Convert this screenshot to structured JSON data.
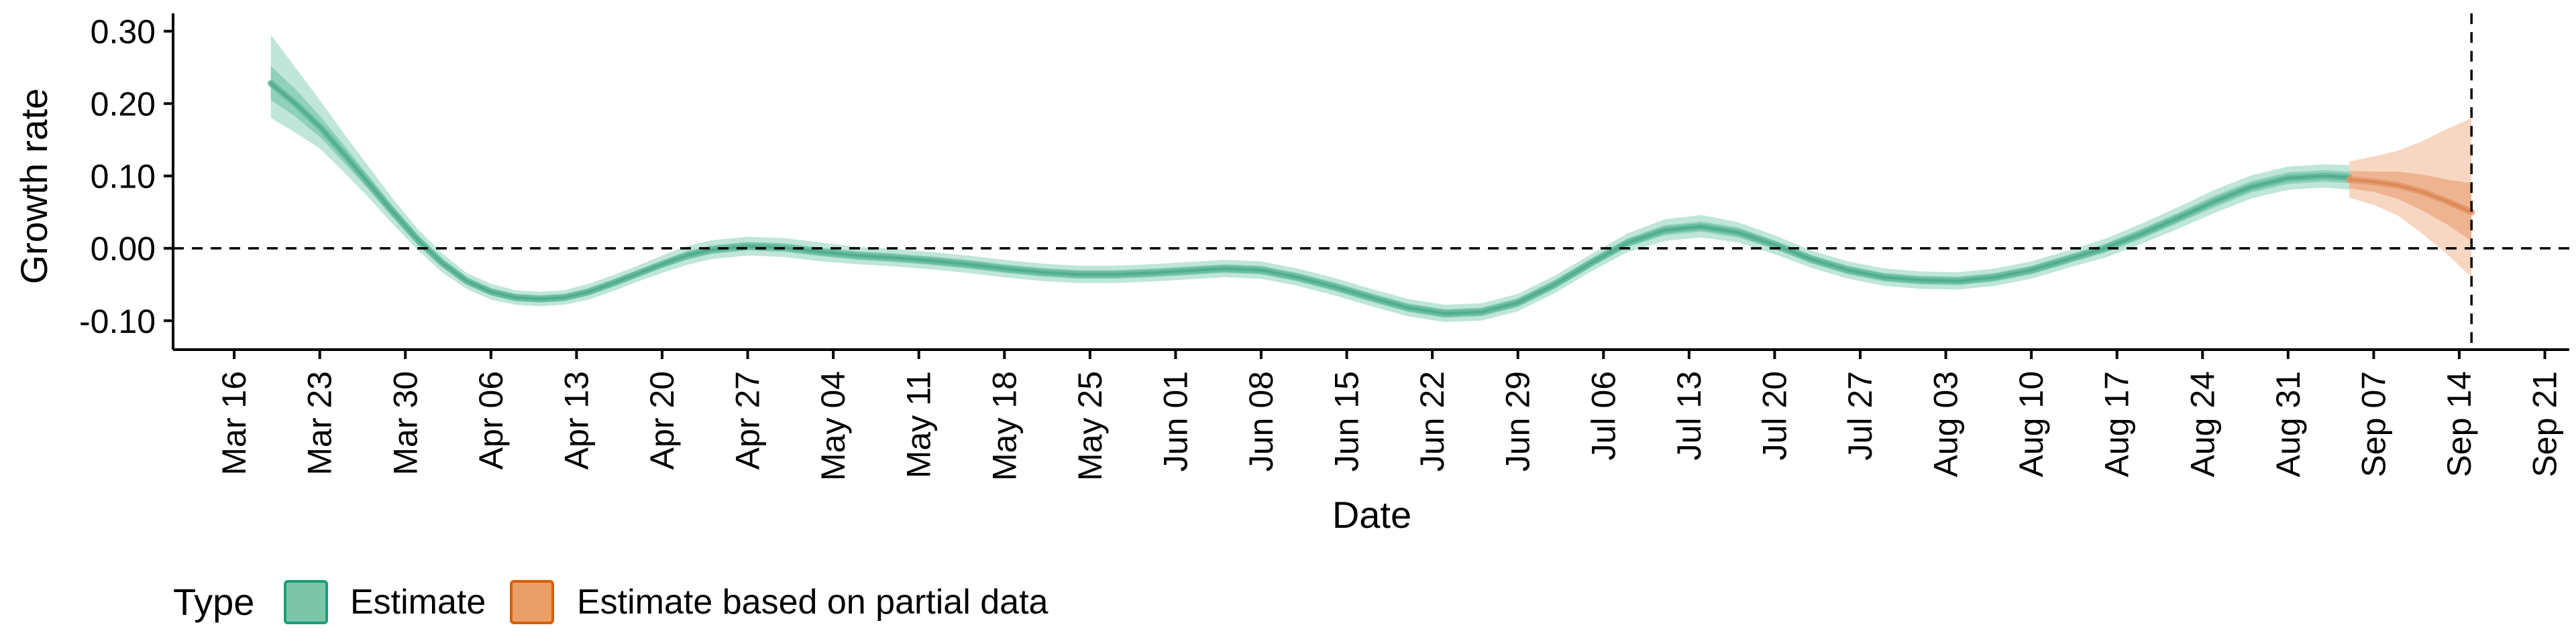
{
  "chart_data": {
    "type": "area",
    "title": "",
    "xlabel": "Date",
    "ylabel": "Growth rate",
    "ylim": [
      -0.14,
      0.32
    ],
    "y_ticks": [
      -0.1,
      0.0,
      0.1,
      0.2,
      0.3
    ],
    "y_tick_labels": [
      "-0.10",
      "0.00",
      "0.10",
      "0.20",
      "0.30"
    ],
    "x_range": [
      "2020-03-11",
      "2020-09-23"
    ],
    "x_ticks": [
      "2020-03-16",
      "2020-03-23",
      "2020-03-30",
      "2020-04-06",
      "2020-04-13",
      "2020-04-20",
      "2020-04-27",
      "2020-05-04",
      "2020-05-11",
      "2020-05-18",
      "2020-05-25",
      "2020-06-01",
      "2020-06-08",
      "2020-06-15",
      "2020-06-22",
      "2020-06-29",
      "2020-07-06",
      "2020-07-13",
      "2020-07-20",
      "2020-07-27",
      "2020-08-03",
      "2020-08-10",
      "2020-08-17",
      "2020-08-24",
      "2020-08-31",
      "2020-09-07",
      "2020-09-14",
      "2020-09-21"
    ],
    "x_tick_labels": [
      "Mar 16",
      "Mar 23",
      "Mar 30",
      "Apr 06",
      "Apr 13",
      "Apr 20",
      "Apr 27",
      "May 04",
      "May 11",
      "May 18",
      "May 25",
      "Jun 01",
      "Jun 08",
      "Jun 15",
      "Jun 22",
      "Jun 29",
      "Jul 06",
      "Jul 13",
      "Jul 20",
      "Jul 27",
      "Aug 03",
      "Aug 10",
      "Aug 17",
      "Aug 24",
      "Aug 31",
      "Sep 07",
      "Sep 14",
      "Sep 21"
    ],
    "reference_lines": {
      "horizontal_y": 0.0,
      "vertical_date": "2020-09-15",
      "style": "dashed"
    },
    "grid": false,
    "legend_position": "bottom-left",
    "legend_title": "Type",
    "series": [
      {
        "name": "Estimate",
        "color": "#1b9e77",
        "fill_light": "#bfe6d8",
        "fill_mid": "#8fd1b9",
        "fill_dark": "#63bb9b",
        "line_color": "#52ad8c",
        "points": [
          {
            "x": "2020-03-19",
            "y": 0.228,
            "lo90": 0.18,
            "hi90": 0.295,
            "lo50": 0.205,
            "hi50": 0.252
          },
          {
            "x": "2020-03-21",
            "y": 0.2,
            "lo90": 0.16,
            "hi90": 0.25,
            "lo50": 0.182,
            "hi50": 0.22
          },
          {
            "x": "2020-03-23",
            "y": 0.168,
            "lo90": 0.138,
            "hi90": 0.205,
            "lo50": 0.154,
            "hi50": 0.183
          },
          {
            "x": "2020-03-25",
            "y": 0.13,
            "lo90": 0.105,
            "hi90": 0.158,
            "lo50": 0.118,
            "hi50": 0.142
          },
          {
            "x": "2020-03-27",
            "y": 0.09,
            "lo90": 0.07,
            "hi90": 0.113,
            "lo50": 0.081,
            "hi50": 0.1
          },
          {
            "x": "2020-03-29",
            "y": 0.05,
            "lo90": 0.033,
            "hi90": 0.068,
            "lo50": 0.042,
            "hi50": 0.058
          },
          {
            "x": "2020-03-31",
            "y": 0.012,
            "lo90": -0.002,
            "hi90": 0.027,
            "lo50": 0.005,
            "hi50": 0.019
          },
          {
            "x": "2020-04-02",
            "y": -0.02,
            "lo90": -0.033,
            "hi90": -0.007,
            "lo50": -0.026,
            "hi50": -0.014
          },
          {
            "x": "2020-04-04",
            "y": -0.045,
            "lo90": -0.056,
            "hi90": -0.034,
            "lo50": -0.05,
            "hi50": -0.04
          },
          {
            "x": "2020-04-06",
            "y": -0.06,
            "lo90": -0.071,
            "hi90": -0.049,
            "lo50": -0.065,
            "hi50": -0.055
          },
          {
            "x": "2020-04-08",
            "y": -0.068,
            "lo90": -0.078,
            "hi90": -0.058,
            "lo50": -0.073,
            "hi50": -0.063
          },
          {
            "x": "2020-04-10",
            "y": -0.07,
            "lo90": -0.08,
            "hi90": -0.06,
            "lo50": -0.075,
            "hi50": -0.065
          },
          {
            "x": "2020-04-12",
            "y": -0.068,
            "lo90": -0.078,
            "hi90": -0.058,
            "lo50": -0.073,
            "hi50": -0.063
          },
          {
            "x": "2020-04-14",
            "y": -0.06,
            "lo90": -0.071,
            "hi90": -0.049,
            "lo50": -0.065,
            "hi50": -0.055
          },
          {
            "x": "2020-04-16",
            "y": -0.048,
            "lo90": -0.059,
            "hi90": -0.037,
            "lo50": -0.053,
            "hi50": -0.043
          },
          {
            "x": "2020-04-18",
            "y": -0.035,
            "lo90": -0.046,
            "hi90": -0.024,
            "lo50": -0.04,
            "hi50": -0.03
          },
          {
            "x": "2020-04-20",
            "y": -0.022,
            "lo90": -0.034,
            "hi90": -0.01,
            "lo50": -0.027,
            "hi50": -0.017
          },
          {
            "x": "2020-04-22",
            "y": -0.01,
            "lo90": -0.023,
            "hi90": 0.003,
            "lo50": -0.016,
            "hi50": -0.004
          },
          {
            "x": "2020-04-24",
            "y": -0.002,
            "lo90": -0.015,
            "hi90": 0.011,
            "lo50": -0.008,
            "hi50": 0.004
          },
          {
            "x": "2020-04-27",
            "y": 0.003,
            "lo90": -0.01,
            "hi90": 0.016,
            "lo50": -0.003,
            "hi50": 0.009
          },
          {
            "x": "2020-04-30",
            "y": 0.001,
            "lo90": -0.012,
            "hi90": 0.014,
            "lo50": -0.005,
            "hi50": 0.007
          },
          {
            "x": "2020-05-03",
            "y": -0.005,
            "lo90": -0.018,
            "hi90": 0.008,
            "lo50": -0.011,
            "hi50": 0.001
          },
          {
            "x": "2020-05-06",
            "y": -0.01,
            "lo90": -0.022,
            "hi90": 0.002,
            "lo50": -0.016,
            "hi50": -0.004
          },
          {
            "x": "2020-05-09",
            "y": -0.013,
            "lo90": -0.025,
            "hi90": -0.001,
            "lo50": -0.019,
            "hi50": -0.007
          },
          {
            "x": "2020-05-12",
            "y": -0.017,
            "lo90": -0.029,
            "hi90": -0.005,
            "lo50": -0.023,
            "hi50": -0.011
          },
          {
            "x": "2020-05-15",
            "y": -0.022,
            "lo90": -0.034,
            "hi90": -0.01,
            "lo50": -0.028,
            "hi50": -0.016
          },
          {
            "x": "2020-05-18",
            "y": -0.028,
            "lo90": -0.04,
            "hi90": -0.016,
            "lo50": -0.034,
            "hi50": -0.022
          },
          {
            "x": "2020-05-21",
            "y": -0.033,
            "lo90": -0.045,
            "hi90": -0.021,
            "lo50": -0.039,
            "hi50": -0.027
          },
          {
            "x": "2020-05-24",
            "y": -0.036,
            "lo90": -0.048,
            "hi90": -0.024,
            "lo50": -0.042,
            "hi50": -0.03
          },
          {
            "x": "2020-05-27",
            "y": -0.036,
            "lo90": -0.048,
            "hi90": -0.024,
            "lo50": -0.042,
            "hi50": -0.03
          },
          {
            "x": "2020-05-30",
            "y": -0.034,
            "lo90": -0.046,
            "hi90": -0.022,
            "lo50": -0.04,
            "hi50": -0.028
          },
          {
            "x": "2020-06-02",
            "y": -0.031,
            "lo90": -0.043,
            "hi90": -0.019,
            "lo50": -0.037,
            "hi50": -0.025
          },
          {
            "x": "2020-06-05",
            "y": -0.028,
            "lo90": -0.04,
            "hi90": -0.016,
            "lo50": -0.034,
            "hi50": -0.022
          },
          {
            "x": "2020-06-08",
            "y": -0.03,
            "lo90": -0.042,
            "hi90": -0.018,
            "lo50": -0.036,
            "hi50": -0.024
          },
          {
            "x": "2020-06-11",
            "y": -0.04,
            "lo90": -0.052,
            "hi90": -0.028,
            "lo50": -0.046,
            "hi50": -0.034
          },
          {
            "x": "2020-06-14",
            "y": -0.053,
            "lo90": -0.065,
            "hi90": -0.041,
            "lo50": -0.059,
            "hi50": -0.047
          },
          {
            "x": "2020-06-17",
            "y": -0.068,
            "lo90": -0.08,
            "hi90": -0.056,
            "lo50": -0.074,
            "hi50": -0.062
          },
          {
            "x": "2020-06-20",
            "y": -0.082,
            "lo90": -0.094,
            "hi90": -0.07,
            "lo50": -0.088,
            "hi50": -0.076
          },
          {
            "x": "2020-06-23",
            "y": -0.09,
            "lo90": -0.102,
            "hi90": -0.078,
            "lo50": -0.096,
            "hi50": -0.084
          },
          {
            "x": "2020-06-26",
            "y": -0.088,
            "lo90": -0.1,
            "hi90": -0.076,
            "lo50": -0.094,
            "hi50": -0.082
          },
          {
            "x": "2020-06-29",
            "y": -0.075,
            "lo90": -0.087,
            "hi90": -0.063,
            "lo50": -0.081,
            "hi50": -0.069
          },
          {
            "x": "2020-07-02",
            "y": -0.05,
            "lo90": -0.062,
            "hi90": -0.038,
            "lo50": -0.056,
            "hi50": -0.044
          },
          {
            "x": "2020-07-05",
            "y": -0.02,
            "lo90": -0.032,
            "hi90": -0.008,
            "lo50": -0.026,
            "hi50": -0.014
          },
          {
            "x": "2020-07-08",
            "y": 0.008,
            "lo90": -0.005,
            "hi90": 0.021,
            "lo50": 0.002,
            "hi50": 0.014
          },
          {
            "x": "2020-07-11",
            "y": 0.025,
            "lo90": 0.01,
            "hi90": 0.04,
            "lo50": 0.018,
            "hi50": 0.032
          },
          {
            "x": "2020-07-14",
            "y": 0.03,
            "lo90": 0.015,
            "hi90": 0.046,
            "lo50": 0.023,
            "hi50": 0.037
          },
          {
            "x": "2020-07-17",
            "y": 0.022,
            "lo90": 0.008,
            "hi90": 0.036,
            "lo50": 0.015,
            "hi50": 0.029
          },
          {
            "x": "2020-07-20",
            "y": 0.005,
            "lo90": -0.008,
            "hi90": 0.018,
            "lo50": -0.001,
            "hi50": 0.011
          },
          {
            "x": "2020-07-23",
            "y": -0.015,
            "lo90": -0.027,
            "hi90": -0.003,
            "lo50": -0.021,
            "hi50": -0.009
          },
          {
            "x": "2020-07-26",
            "y": -0.03,
            "lo90": -0.042,
            "hi90": -0.018,
            "lo50": -0.036,
            "hi50": -0.024
          },
          {
            "x": "2020-07-29",
            "y": -0.04,
            "lo90": -0.052,
            "hi90": -0.028,
            "lo50": -0.046,
            "hi50": -0.034
          },
          {
            "x": "2020-08-01",
            "y": -0.044,
            "lo90": -0.056,
            "hi90": -0.032,
            "lo50": -0.05,
            "hi50": -0.038
          },
          {
            "x": "2020-08-04",
            "y": -0.045,
            "lo90": -0.057,
            "hi90": -0.033,
            "lo50": -0.051,
            "hi50": -0.039
          },
          {
            "x": "2020-08-07",
            "y": -0.04,
            "lo90": -0.052,
            "hi90": -0.028,
            "lo50": -0.046,
            "hi50": -0.034
          },
          {
            "x": "2020-08-10",
            "y": -0.03,
            "lo90": -0.042,
            "hi90": -0.018,
            "lo50": -0.036,
            "hi50": -0.024
          },
          {
            "x": "2020-08-13",
            "y": -0.015,
            "lo90": -0.027,
            "hi90": -0.003,
            "lo50": -0.021,
            "hi50": -0.009
          },
          {
            "x": "2020-08-16",
            "y": 0.0,
            "lo90": -0.013,
            "hi90": 0.013,
            "lo50": -0.006,
            "hi50": 0.006
          },
          {
            "x": "2020-08-19",
            "y": 0.02,
            "lo90": 0.006,
            "hi90": 0.034,
            "lo50": 0.013,
            "hi50": 0.027
          },
          {
            "x": "2020-08-22",
            "y": 0.042,
            "lo90": 0.027,
            "hi90": 0.057,
            "lo50": 0.035,
            "hi50": 0.049
          },
          {
            "x": "2020-08-25",
            "y": 0.065,
            "lo90": 0.049,
            "hi90": 0.081,
            "lo50": 0.057,
            "hi50": 0.073
          },
          {
            "x": "2020-08-28",
            "y": 0.085,
            "lo90": 0.069,
            "hi90": 0.101,
            "lo50": 0.077,
            "hi50": 0.093
          },
          {
            "x": "2020-08-31",
            "y": 0.097,
            "lo90": 0.081,
            "hi90": 0.113,
            "lo50": 0.089,
            "hi50": 0.105
          },
          {
            "x": "2020-09-03",
            "y": 0.1,
            "lo90": 0.084,
            "hi90": 0.116,
            "lo50": 0.092,
            "hi50": 0.108
          },
          {
            "x": "2020-09-05",
            "y": 0.098,
            "lo90": 0.081,
            "hi90": 0.115,
            "lo50": 0.09,
            "hi50": 0.106
          }
        ]
      },
      {
        "name": "Estimate based on partial data",
        "color": "#d95f02",
        "fill_light": "#f7d7c2",
        "fill_mid": "#eeb491",
        "fill_dark": "#e49668",
        "line_color": "#dd8a58",
        "points": [
          {
            "x": "2020-09-05",
            "y": 0.095,
            "lo90": 0.07,
            "hi90": 0.12,
            "lo50": 0.083,
            "hi50": 0.107
          },
          {
            "x": "2020-09-07",
            "y": 0.092,
            "lo90": 0.06,
            "hi90": 0.127,
            "lo50": 0.078,
            "hi50": 0.106
          },
          {
            "x": "2020-09-09",
            "y": 0.087,
            "lo90": 0.045,
            "hi90": 0.135,
            "lo50": 0.068,
            "hi50": 0.106
          },
          {
            "x": "2020-09-11",
            "y": 0.078,
            "lo90": 0.02,
            "hi90": 0.148,
            "lo50": 0.052,
            "hi50": 0.102
          },
          {
            "x": "2020-09-13",
            "y": 0.065,
            "lo90": -0.008,
            "hi90": 0.165,
            "lo50": 0.033,
            "hi50": 0.095
          },
          {
            "x": "2020-09-15",
            "y": 0.05,
            "lo90": -0.04,
            "hi90": 0.18,
            "lo50": 0.01,
            "hi50": 0.09
          }
        ]
      }
    ]
  },
  "legend": {
    "title": "Type",
    "items": [
      {
        "label": "Estimate",
        "fill": "#7cc5a8",
        "stroke": "#1b9e77"
      },
      {
        "label": "Estimate based on partial data",
        "fill": "#eb9f68",
        "stroke": "#d95f02"
      }
    ]
  }
}
